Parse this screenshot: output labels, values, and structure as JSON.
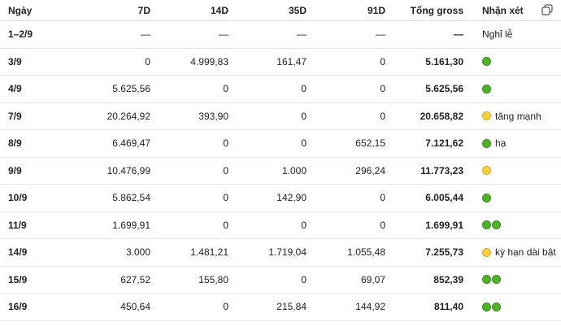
{
  "table": {
    "header": [
      "Ngày",
      "7D",
      "14D",
      "35D",
      "91D",
      "Tổng gross",
      "Nhận xét"
    ],
    "rows": [
      [
        "1–2/9",
        "—",
        "—",
        "—",
        "—",
        "—",
        "Nghỉ lễ"
      ],
      [
        "3/9",
        "0",
        "4.999,83",
        "161,47",
        "0",
        "5.161,30"
      ],
      [
        "4/9",
        "5.625,56",
        "0",
        "0",
        "0",
        "5.625,56"
      ],
      [
        "7/9",
        "20.264,92",
        "393,90",
        "0",
        "0",
        "20.658,82",
        "tăng mạnh"
      ],
      [
        "8/9",
        "6.469,47",
        "0",
        "0",
        "652,15",
        "7.121,62",
        "hạ"
      ],
      [
        "9/9",
        "10.476,99",
        "0",
        "1.000",
        "296,24",
        "11.773,23"
      ],
      [
        "10/9",
        "5.862,54",
        "0",
        "142,90",
        "0",
        "6.005,44"
      ],
      [
        "11/9",
        "1.699,91",
        "0",
        "0",
        "0",
        "1.699,91"
      ],
      [
        "14/9",
        "3.000",
        "1.481,21",
        "1.719,04",
        "1.055,48",
        "7.255,73",
        "kỳ hạn dài bật"
      ],
      [
        "15/9",
        "627,52",
        "155,80",
        "0",
        "69,07",
        "852,39"
      ],
      [
        "16/9",
        "450,64",
        "0",
        "215,84",
        "144,92",
        "811,40"
      ]
    ]
  }
}
